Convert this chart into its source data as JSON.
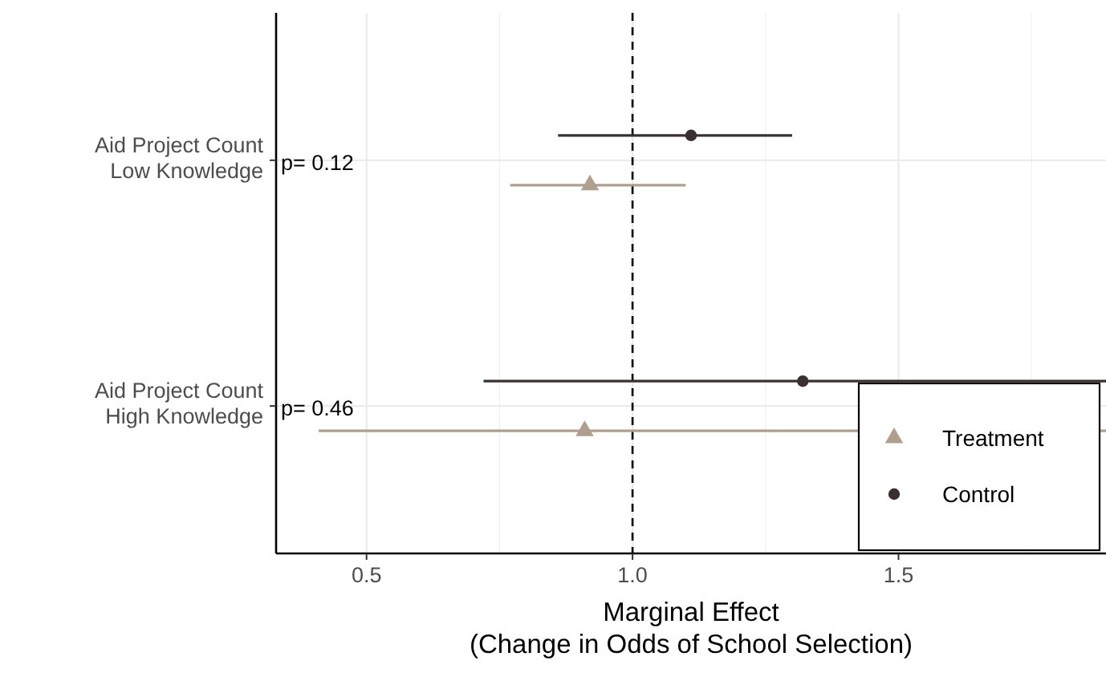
{
  "chart_data": {
    "type": "scatter",
    "orientation": "horizontal",
    "xlabel": "Marginal Effect\n(Change in Odds of School Selection)",
    "categories": [
      "Aid Project Count\nLow Knowledge",
      "Aid Project Count\nHigh Knowledge"
    ],
    "series": [
      {
        "name": "Treatment",
        "color": "#b09f8f",
        "marker": "triangle",
        "values": [
          0.92,
          0.91
        ],
        "errors": [
          [
            0.77,
            1.1
          ],
          [
            0.41,
            1.89
          ]
        ]
      },
      {
        "name": "Control",
        "color": "#3a3032",
        "marker": "circle",
        "values": [
          1.11,
          1.32
        ],
        "errors": [
          [
            0.86,
            1.3
          ],
          [
            0.72,
            1.89
          ]
        ]
      }
    ],
    "xlim": [
      0.33,
      1.89
    ],
    "xticks": [
      0.5,
      {
        "value": 1,
        "label": "1.0"
      },
      1.5
    ],
    "ref_lines": [
      {
        "axis": "x",
        "value": 1,
        "line_style": "dashed",
        "color": "#000000"
      }
    ],
    "annotations": [
      "p= 0.12",
      "p= 0.46"
    ],
    "grid": true,
    "legend": "bottom right"
  }
}
